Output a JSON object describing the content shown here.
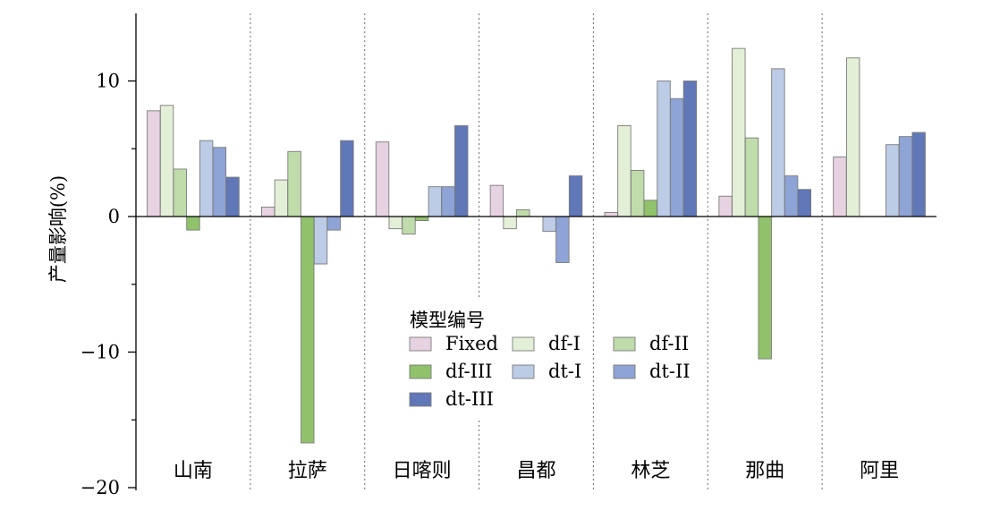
{
  "chart_data": {
    "type": "bar",
    "title": "",
    "xlabel": "",
    "ylabel": "产量影响(%)",
    "ylim": [
      -20,
      15
    ],
    "yticks": [
      -20,
      -10,
      0,
      10
    ],
    "ytick_labels": [
      "−20",
      "−10",
      "0",
      "10"
    ],
    "grid": false,
    "separators": "dotted vertical lines between categories",
    "legend_position": "center",
    "legend_title": "模型编号",
    "categories": [
      "山南",
      "拉萨",
      "日喀则",
      "昌都",
      "林芝",
      "那曲",
      "阿里"
    ],
    "series": [
      {
        "name": "Fixed",
        "color": "#e6d2e0",
        "values": [
          7.8,
          0.7,
          5.5,
          2.3,
          0.3,
          1.5,
          4.4
        ]
      },
      {
        "name": "df-I",
        "color": "#e4efd8",
        "values": [
          8.2,
          2.7,
          -0.9,
          -0.9,
          6.7,
          12.4,
          11.7
        ]
      },
      {
        "name": "df-II",
        "color": "#bfdcaa",
        "values": [
          3.5,
          4.8,
          -1.3,
          0.5,
          3.4,
          5.8,
          null
        ]
      },
      {
        "name": "df-III",
        "color": "#8fc26a",
        "values": [
          -1.0,
          -16.7,
          -0.3,
          null,
          1.2,
          -10.5,
          null
        ]
      },
      {
        "name": "dt-I",
        "color": "#bccbe6",
        "values": [
          5.6,
          -3.5,
          2.2,
          -1.1,
          10.0,
          10.9,
          5.3
        ]
      },
      {
        "name": "dt-II",
        "color": "#8ea3d6",
        "values": [
          5.1,
          -1.0,
          2.2,
          -3.4,
          8.7,
          3.0,
          5.9
        ]
      },
      {
        "name": "dt-III",
        "color": "#6077b8",
        "values": [
          2.9,
          5.6,
          6.7,
          3.0,
          10.0,
          2.0,
          6.2
        ]
      }
    ]
  }
}
